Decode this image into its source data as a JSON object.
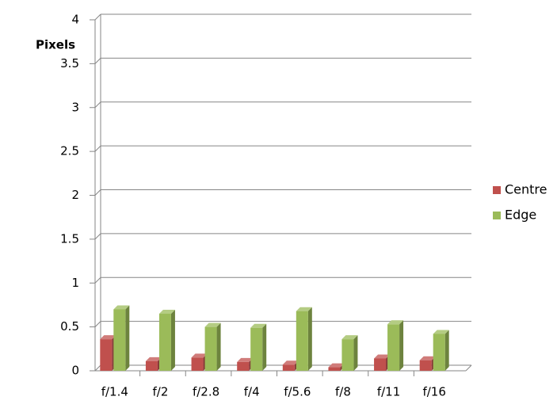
{
  "chart_data": {
    "type": "bar",
    "y_label": "Pixels",
    "categories": [
      "f/1.4",
      "f/2",
      "f/2.8",
      "f/4",
      "f/5.6",
      "f/8",
      "f/11",
      "f/16"
    ],
    "series": [
      {
        "name": "Centre",
        "color": "#c0504d",
        "values": [
          0.36,
          0.11,
          0.15,
          0.1,
          0.07,
          0.04,
          0.14,
          0.12
        ]
      },
      {
        "name": "Edge",
        "color": "#9bbb59",
        "values": [
          0.7,
          0.65,
          0.5,
          0.49,
          0.68,
          0.36,
          0.53,
          0.42
        ]
      }
    ],
    "ylim": [
      0,
      4
    ],
    "yticks": [
      0,
      0.5,
      1,
      1.5,
      2,
      2.5,
      3,
      3.5,
      4
    ],
    "grid": true
  }
}
